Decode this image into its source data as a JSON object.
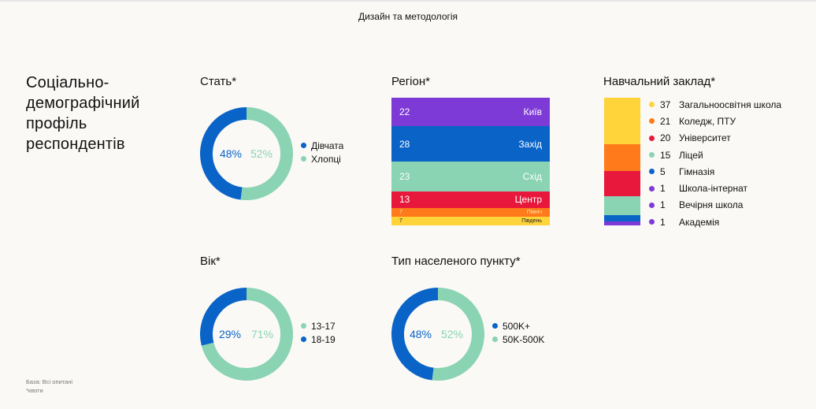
{
  "header": {
    "title": "Дизайн та методологія"
  },
  "main_title": "Соціально-демографічний профіль респондентів",
  "footnotes": {
    "base": "База: Всі опитані",
    "quota": "*квоти"
  },
  "colors": {
    "blue": "#0a64c8",
    "mint": "#8ad3b3",
    "purple": "#7e3ad6",
    "red": "#e8183c",
    "orange": "#ff7a1a",
    "yellow": "#ffd43b"
  },
  "chart_data": [
    {
      "type": "pie",
      "title": "Стать*",
      "series": [
        {
          "name": "Дівчата",
          "value": 48,
          "label": "48%",
          "color": "#0a64c8"
        },
        {
          "name": "Хлопці",
          "value": 52,
          "label": "52%",
          "color": "#8ad3b3"
        }
      ]
    },
    {
      "type": "bar",
      "title": "Регіон*",
      "series": [
        {
          "name": "Київ",
          "value": 22,
          "label": "22",
          "color": "#7e3ad6"
        },
        {
          "name": "Захід",
          "value": 28,
          "label": "28",
          "color": "#0a64c8"
        },
        {
          "name": "Схід",
          "value": 23,
          "label": "23",
          "color": "#8ad3b3"
        },
        {
          "name": "Центр",
          "value": 13,
          "label": "13",
          "color": "#e8183c"
        },
        {
          "name": "Північ",
          "value": 7,
          "label": "7",
          "color": "#ff7a1a"
        },
        {
          "name": "Південь",
          "value": 7,
          "label": "7",
          "color": "#ffd43b"
        }
      ]
    },
    {
      "type": "bar",
      "title": "Навчальний заклад*",
      "series": [
        {
          "name": "Загальноосвітня школа",
          "value": 37,
          "label": "37",
          "color": "#ffd43b"
        },
        {
          "name": "Коледж, ПТУ",
          "value": 21,
          "label": "21",
          "color": "#ff7a1a"
        },
        {
          "name": "Університет",
          "value": 20,
          "label": "20",
          "color": "#e8183c"
        },
        {
          "name": "Ліцей",
          "value": 15,
          "label": "15",
          "color": "#8ad3b3"
        },
        {
          "name": "Гімназія",
          "value": 5,
          "label": "5",
          "color": "#0a64c8"
        },
        {
          "name": "Школа-інтернат",
          "value": 1,
          "label": "1",
          "color": "#7e3ad6"
        },
        {
          "name": "Вечірня школа",
          "value": 1,
          "label": "1",
          "color": "#7e3ad6"
        },
        {
          "name": "Академія",
          "value": 1,
          "label": "1",
          "color": "#7e3ad6"
        }
      ]
    },
    {
      "type": "pie",
      "title": "Вік*",
      "series": [
        {
          "name": "13-17",
          "value": 71,
          "label": "71%",
          "color": "#8ad3b3"
        },
        {
          "name": "18-19",
          "value": 29,
          "label": "29%",
          "color": "#0a64c8"
        }
      ]
    },
    {
      "type": "pie",
      "title": "Тип населеного пункту*",
      "series": [
        {
          "name": "500K+",
          "value": 48,
          "label": "48%",
          "color": "#0a64c8"
        },
        {
          "name": "50K-500K",
          "value": 52,
          "label": "52%",
          "color": "#8ad3b3"
        }
      ]
    }
  ]
}
